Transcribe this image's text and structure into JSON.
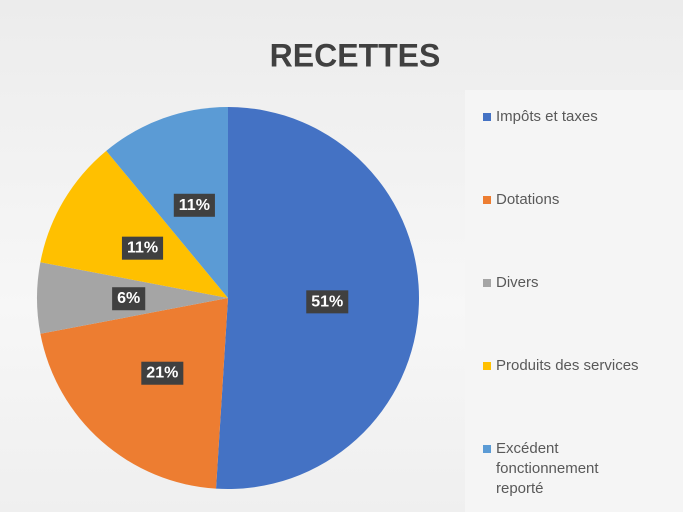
{
  "chart_data": {
    "type": "pie",
    "title": "RECETTES",
    "categories": [
      "Impôts et taxes",
      "Dotations",
      "Divers",
      "Produits des services",
      "Excédent fonctionnement reporté"
    ],
    "values": [
      51,
      21,
      6,
      11,
      11
    ],
    "value_labels": [
      "51%",
      "21%",
      "6%",
      "11%",
      "11%"
    ],
    "colors": [
      "#4472c4",
      "#ed7d31",
      "#a5a5a5",
      "#ffc000",
      "#5b9bd5"
    ],
    "legend": "right"
  }
}
